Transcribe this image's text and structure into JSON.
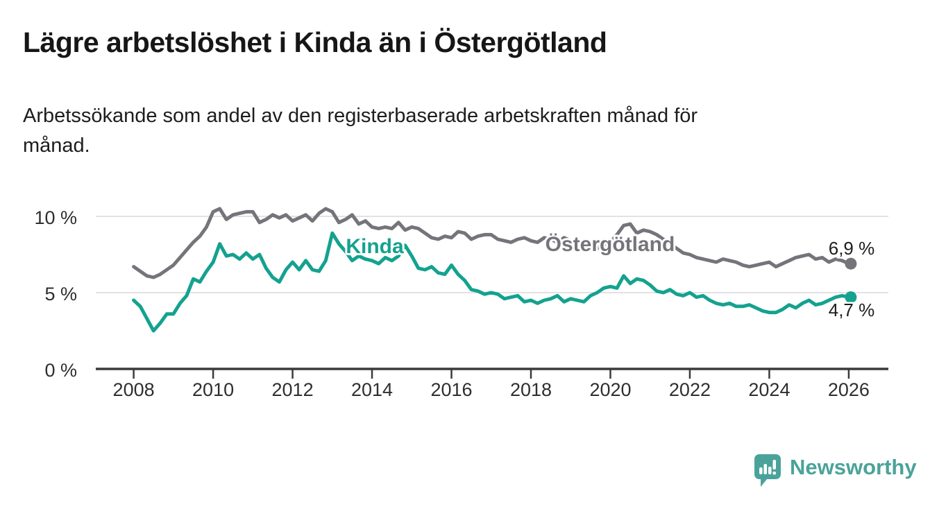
{
  "header": {
    "title": "Lägre arbetslöshet i Kinda än i Östergötland",
    "subtitle_lines": [
      "Arbetssökande som andel av den registerbaserade arbetskraften månad för",
      "månad."
    ]
  },
  "chart_data": {
    "type": "line",
    "title": "Lägre arbetslöshet i Kinda än i Östergötland",
    "subtitle": "Arbetssökande som andel av den registerbaserade arbetskraften månad för månad.",
    "grid": "horizontal",
    "legend_position": "inline-labels",
    "x_axis": {
      "range": [
        2007.05,
        2027.0
      ],
      "ticks": [
        2008,
        2010,
        2012,
        2014,
        2016,
        2018,
        2020,
        2022,
        2024,
        2026
      ],
      "tick_labels": [
        "2008",
        "2010",
        "2012",
        "2014",
        "2016",
        "2018",
        "2020",
        "2022",
        "2024",
        "2026"
      ]
    },
    "y_axis": {
      "unit": "%",
      "range": [
        0,
        11
      ],
      "ticks": [
        0,
        5,
        10
      ],
      "tick_labels": [
        "0 %",
        "5 %",
        "10 %"
      ]
    },
    "start_year": 2008.0,
    "points_per_year": 6,
    "series": [
      {
        "name": "Östergötland",
        "color": "#74747a",
        "end_value": 6.9,
        "end_value_label": "6,9 %",
        "values": [
          6.7,
          6.4,
          6.1,
          6.0,
          6.2,
          6.5,
          6.8,
          7.3,
          7.8,
          8.3,
          8.7,
          9.3,
          10.3,
          10.5,
          9.8,
          10.1,
          10.2,
          10.3,
          10.3,
          9.6,
          9.8,
          10.1,
          9.9,
          10.1,
          9.7,
          9.9,
          10.1,
          9.7,
          10.2,
          10.5,
          10.3,
          9.6,
          9.8,
          10.1,
          9.5,
          9.7,
          9.3,
          9.2,
          9.3,
          9.2,
          9.6,
          9.1,
          9.3,
          9.2,
          8.9,
          8.6,
          8.5,
          8.7,
          8.6,
          9.0,
          8.9,
          8.5,
          8.7,
          8.8,
          8.8,
          8.5,
          8.4,
          8.3,
          8.5,
          8.6,
          8.4,
          8.3,
          8.6,
          8.5,
          8.3,
          8.6,
          8.4,
          8.2,
          8.1,
          8.0,
          7.9,
          8.1,
          8.3,
          8.8,
          9.4,
          9.5,
          8.9,
          9.1,
          9.0,
          8.8,
          8.5,
          8.2,
          7.9,
          7.6,
          7.5,
          7.3,
          7.2,
          7.1,
          7.0,
          7.2,
          7.1,
          7.0,
          6.8,
          6.7,
          6.8,
          6.9,
          7.0,
          6.7,
          6.9,
          7.1,
          7.3,
          7.4,
          7.5,
          7.2,
          7.3,
          7.0,
          7.2,
          7.1,
          6.9
        ]
      },
      {
        "name": "Kinda",
        "color": "#14a28f",
        "end_value": 4.7,
        "end_value_label": "4,7 %",
        "values": [
          4.5,
          4.1,
          3.3,
          2.5,
          3.0,
          3.6,
          3.6,
          4.3,
          4.8,
          5.9,
          5.7,
          6.4,
          7.0,
          8.2,
          7.4,
          7.5,
          7.2,
          7.6,
          7.2,
          7.5,
          6.6,
          6.0,
          5.7,
          6.5,
          7.0,
          6.5,
          7.1,
          6.5,
          6.4,
          7.1,
          8.9,
          8.2,
          7.7,
          7.1,
          7.4,
          7.2,
          7.1,
          6.9,
          7.3,
          7.1,
          7.4,
          8.1,
          7.4,
          6.6,
          6.5,
          6.7,
          6.3,
          6.2,
          6.8,
          6.2,
          5.8,
          5.2,
          5.1,
          4.9,
          5.0,
          4.9,
          4.6,
          4.7,
          4.8,
          4.4,
          4.5,
          4.3,
          4.5,
          4.6,
          4.8,
          4.4,
          4.6,
          4.5,
          4.4,
          4.8,
          5.0,
          5.3,
          5.4,
          5.3,
          6.1,
          5.6,
          5.9,
          5.8,
          5.5,
          5.1,
          5.0,
          5.2,
          4.9,
          4.8,
          5.0,
          4.7,
          4.8,
          4.5,
          4.3,
          4.2,
          4.3,
          4.1,
          4.1,
          4.2,
          4.0,
          3.8,
          3.7,
          3.7,
          3.9,
          4.2,
          4.0,
          4.3,
          4.5,
          4.2,
          4.3,
          4.5,
          4.7,
          4.8,
          4.7
        ]
      }
    ]
  },
  "footer": {
    "brand": "Newsworthy",
    "brand_color": "#4aa39a"
  }
}
